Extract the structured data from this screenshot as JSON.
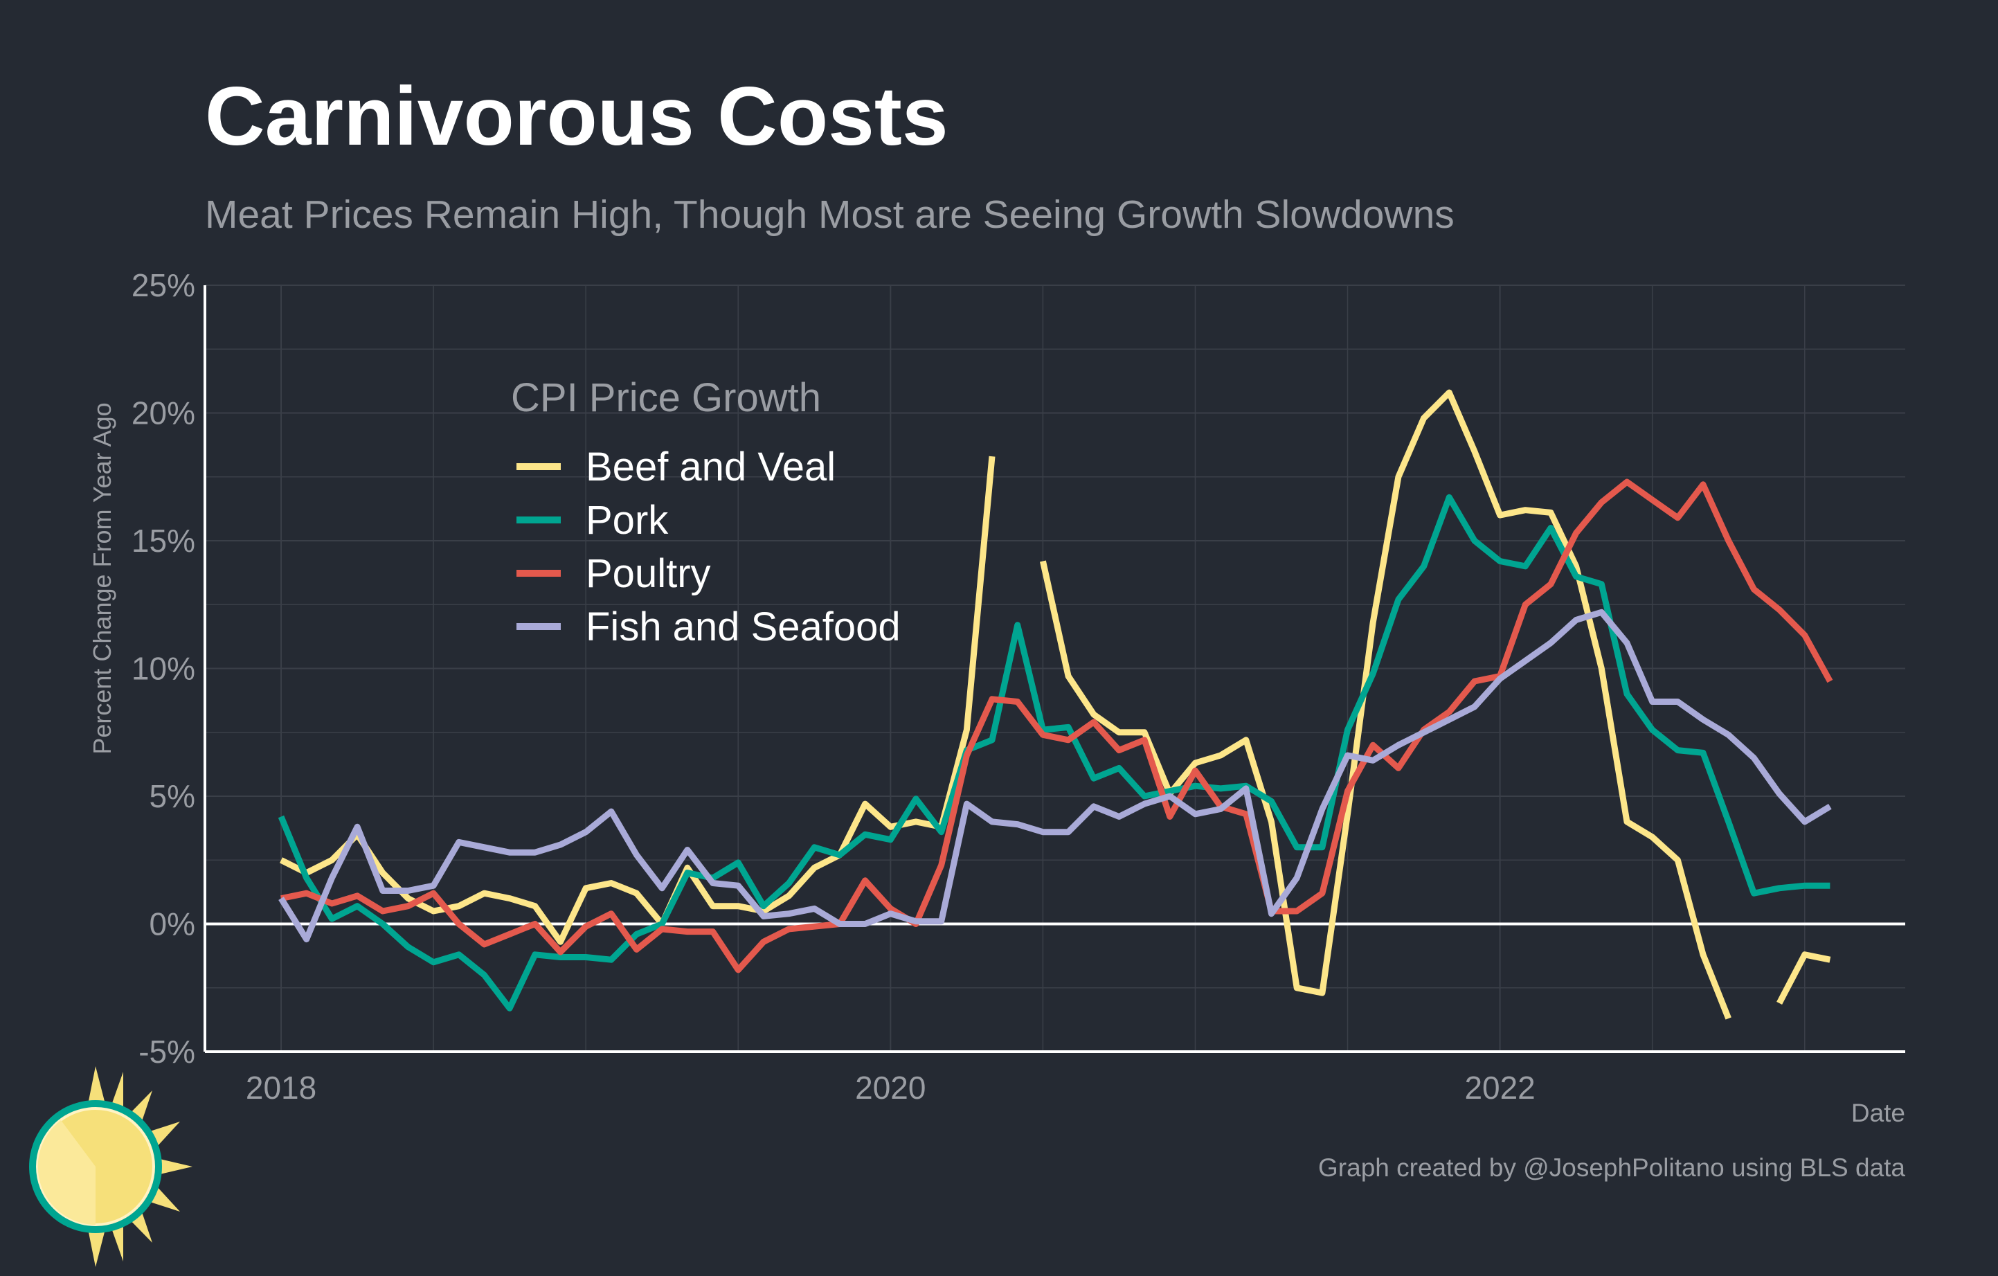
{
  "title": "Carnivorous Costs",
  "subtitle": "Meat Prices Remain High, Though Most are Seeing Growth Slowdowns",
  "caption": "Graph created by @JosephPolitano using BLS data",
  "colors": {
    "background": "#252a33",
    "grid": "#3a3f48",
    "axis": "#ffffff",
    "text_muted": "#9a9da3",
    "beef": "#fde68a",
    "pork": "#00a591",
    "poultry": "#e4594d",
    "fish": "#a9aad8",
    "logo_sun": "#f6e07a",
    "logo_ring": "#00a591"
  },
  "chart_data": {
    "type": "line",
    "xlabel": "Date",
    "ylabel": "Percent Change From Year Ago",
    "xlim": [
      2017.75,
      2020.0
    ],
    "x_start": "2018-01",
    "x_ticks": [
      2018,
      2020,
      2022
    ],
    "x_tick_labels": [
      "2018",
      "2020",
      "2022"
    ],
    "ylim": [
      -5,
      25
    ],
    "y_ticks": [
      -5,
      0,
      5,
      10,
      15,
      20,
      25
    ],
    "y_tick_labels": [
      "-5%",
      "0%",
      "5%",
      "10%",
      "15%",
      "20%",
      "25%"
    ],
    "legend_title": "CPI Price Growth",
    "legend_position": "top-left",
    "grid": true,
    "series": [
      {
        "name": "Beef and Veal",
        "color_key": "beef",
        "values": [
          2.5,
          2.0,
          2.5,
          3.5,
          2.0,
          1.0,
          0.5,
          0.7,
          1.2,
          1.0,
          0.7,
          -0.7,
          1.4,
          1.6,
          1.2,
          0.0,
          2.2,
          0.7,
          0.7,
          0.5,
          1.1,
          2.2,
          2.7,
          4.7,
          3.8,
          4.0,
          3.8,
          7.6,
          18.3,
          null,
          14.2,
          9.7,
          8.2,
          7.5,
          7.5,
          5.1,
          6.3,
          6.6,
          7.2,
          4.0,
          -2.5,
          -2.7,
          4.3,
          11.8,
          17.5,
          19.8,
          20.8,
          18.5,
          16.0,
          16.2,
          16.1,
          14.0,
          10.0,
          4.0,
          3.4,
          2.5,
          -1.2,
          -3.7,
          null,
          -3.1,
          -1.2,
          -1.4
        ]
      },
      {
        "name": "Pork",
        "color_key": "pork",
        "values": [
          4.2,
          1.8,
          0.2,
          0.7,
          0.0,
          -0.9,
          -1.5,
          -1.2,
          -2.0,
          -3.3,
          -1.2,
          -1.3,
          -1.3,
          -1.4,
          -0.4,
          0.0,
          2.0,
          1.8,
          2.4,
          0.7,
          1.6,
          3.0,
          2.7,
          3.5,
          3.3,
          4.9,
          3.6,
          6.8,
          7.2,
          11.7,
          7.6,
          7.7,
          5.7,
          6.1,
          5.0,
          5.2,
          5.4,
          5.3,
          5.4,
          4.8,
          3.0,
          3.0,
          7.6,
          9.8,
          12.7,
          14.0,
          16.7,
          15.0,
          14.2,
          14.0,
          15.5,
          13.6,
          13.3,
          9.0,
          7.6,
          6.8,
          6.7,
          4.0,
          1.2,
          1.4,
          1.5,
          1.5
        ]
      },
      {
        "name": "Poultry",
        "color_key": "poultry",
        "values": [
          1.0,
          1.2,
          0.8,
          1.1,
          0.5,
          0.7,
          1.2,
          0.0,
          -0.8,
          -0.4,
          0.0,
          -1.1,
          -0.1,
          0.4,
          -1.0,
          -0.2,
          -0.3,
          -0.3,
          -1.8,
          -0.7,
          -0.2,
          -0.1,
          0.0,
          1.7,
          0.6,
          0.0,
          2.3,
          6.6,
          8.8,
          8.7,
          7.4,
          7.2,
          7.9,
          6.8,
          7.2,
          4.2,
          6.0,
          4.6,
          4.3,
          0.5,
          0.5,
          1.2,
          5.2,
          7.0,
          6.1,
          7.6,
          8.3,
          9.5,
          9.7,
          12.5,
          13.3,
          15.3,
          16.5,
          17.3,
          16.6,
          15.9,
          17.2,
          15.0,
          13.1,
          12.3,
          11.3,
          9.5
        ]
      },
      {
        "name": "Fish and Seafood",
        "color_key": "fish",
        "values": [
          1.0,
          -0.6,
          1.8,
          3.8,
          1.3,
          1.3,
          1.5,
          3.2,
          3.0,
          2.8,
          2.8,
          3.1,
          3.6,
          4.4,
          2.7,
          1.4,
          2.9,
          1.6,
          1.5,
          0.3,
          0.4,
          0.6,
          0.0,
          0.0,
          0.4,
          0.1,
          0.1,
          4.7,
          4.0,
          3.9,
          3.6,
          3.6,
          4.6,
          4.2,
          4.7,
          5.0,
          4.3,
          4.5,
          5.3,
          0.4,
          1.8,
          4.5,
          6.6,
          6.4,
          7.0,
          7.5,
          8.0,
          8.5,
          9.6,
          10.3,
          11.0,
          11.9,
          12.2,
          11.0,
          8.7,
          8.7,
          8.0,
          7.4,
          6.5,
          5.1,
          4.0,
          4.6
        ]
      }
    ]
  }
}
